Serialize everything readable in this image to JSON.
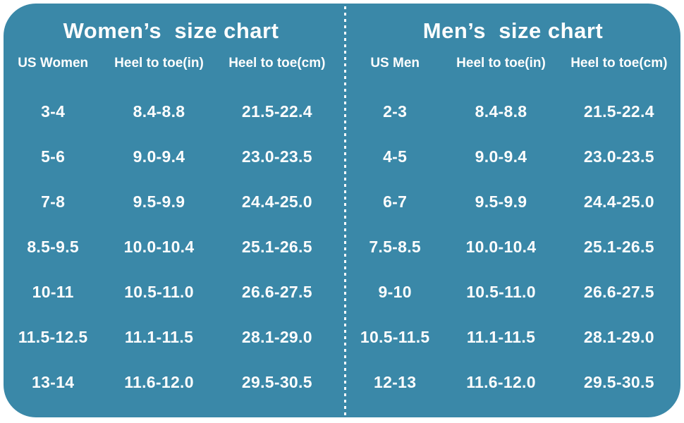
{
  "colors": {
    "panel_bg": "#3a88a8",
    "text": "#fdfdfd",
    "divider": "#ffffff",
    "page_bg": "#ffffff"
  },
  "chart_data": [
    {
      "type": "table",
      "title": "Women’s  size chart",
      "columns": [
        "US Women",
        "Heel to toe(in)",
        "Heel to toe(cm)"
      ],
      "rows": [
        [
          "3-4",
          "8.4-8.8",
          "21.5-22.4"
        ],
        [
          "5-6",
          "9.0-9.4",
          "23.0-23.5"
        ],
        [
          "7-8",
          "9.5-9.9",
          "24.4-25.0"
        ],
        [
          "8.5-9.5",
          "10.0-10.4",
          "25.1-26.5"
        ],
        [
          "10-11",
          "10.5-11.0",
          "26.6-27.5"
        ],
        [
          "11.5-12.5",
          "11.1-11.5",
          "28.1-29.0"
        ],
        [
          "13-14",
          "11.6-12.0",
          "29.5-30.5"
        ]
      ]
    },
    {
      "type": "table",
      "title": "Men’s  size chart",
      "columns": [
        "US Men",
        "Heel to toe(in)",
        "Heel to toe(cm)"
      ],
      "rows": [
        [
          "2-3",
          "8.4-8.8",
          "21.5-22.4"
        ],
        [
          "4-5",
          "9.0-9.4",
          "23.0-23.5"
        ],
        [
          "6-7",
          "9.5-9.9",
          "24.4-25.0"
        ],
        [
          "7.5-8.5",
          "10.0-10.4",
          "25.1-26.5"
        ],
        [
          "9-10",
          "10.5-11.0",
          "26.6-27.5"
        ],
        [
          "10.5-11.5",
          "11.1-11.5",
          "28.1-29.0"
        ],
        [
          "12-13",
          "11.6-12.0",
          "29.5-30.5"
        ]
      ]
    }
  ]
}
